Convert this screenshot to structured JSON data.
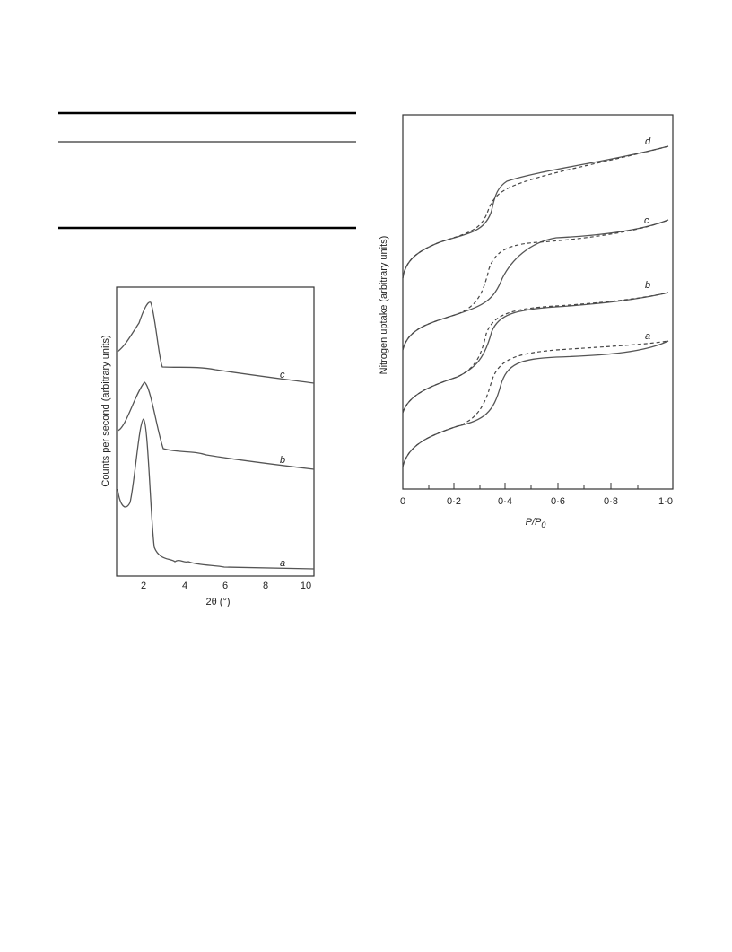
{
  "left_figure": {
    "y_label": "Counts per second (arbitrary units)",
    "x_label": "2θ (°)",
    "x_ticks": [
      "2",
      "4",
      "6",
      "8",
      "10"
    ],
    "curve_labels": [
      "c",
      "b",
      "a"
    ]
  },
  "right_figure": {
    "y_label": "Nitrogen uptake (arbitrary units)",
    "x_label_parts": [
      "P/P",
      "0"
    ],
    "x_ticks": [
      "0",
      "0·2",
      "0·4",
      "0·6",
      "0·8",
      "1·0"
    ],
    "curve_labels": [
      "d",
      "c",
      "b",
      "a"
    ]
  }
}
